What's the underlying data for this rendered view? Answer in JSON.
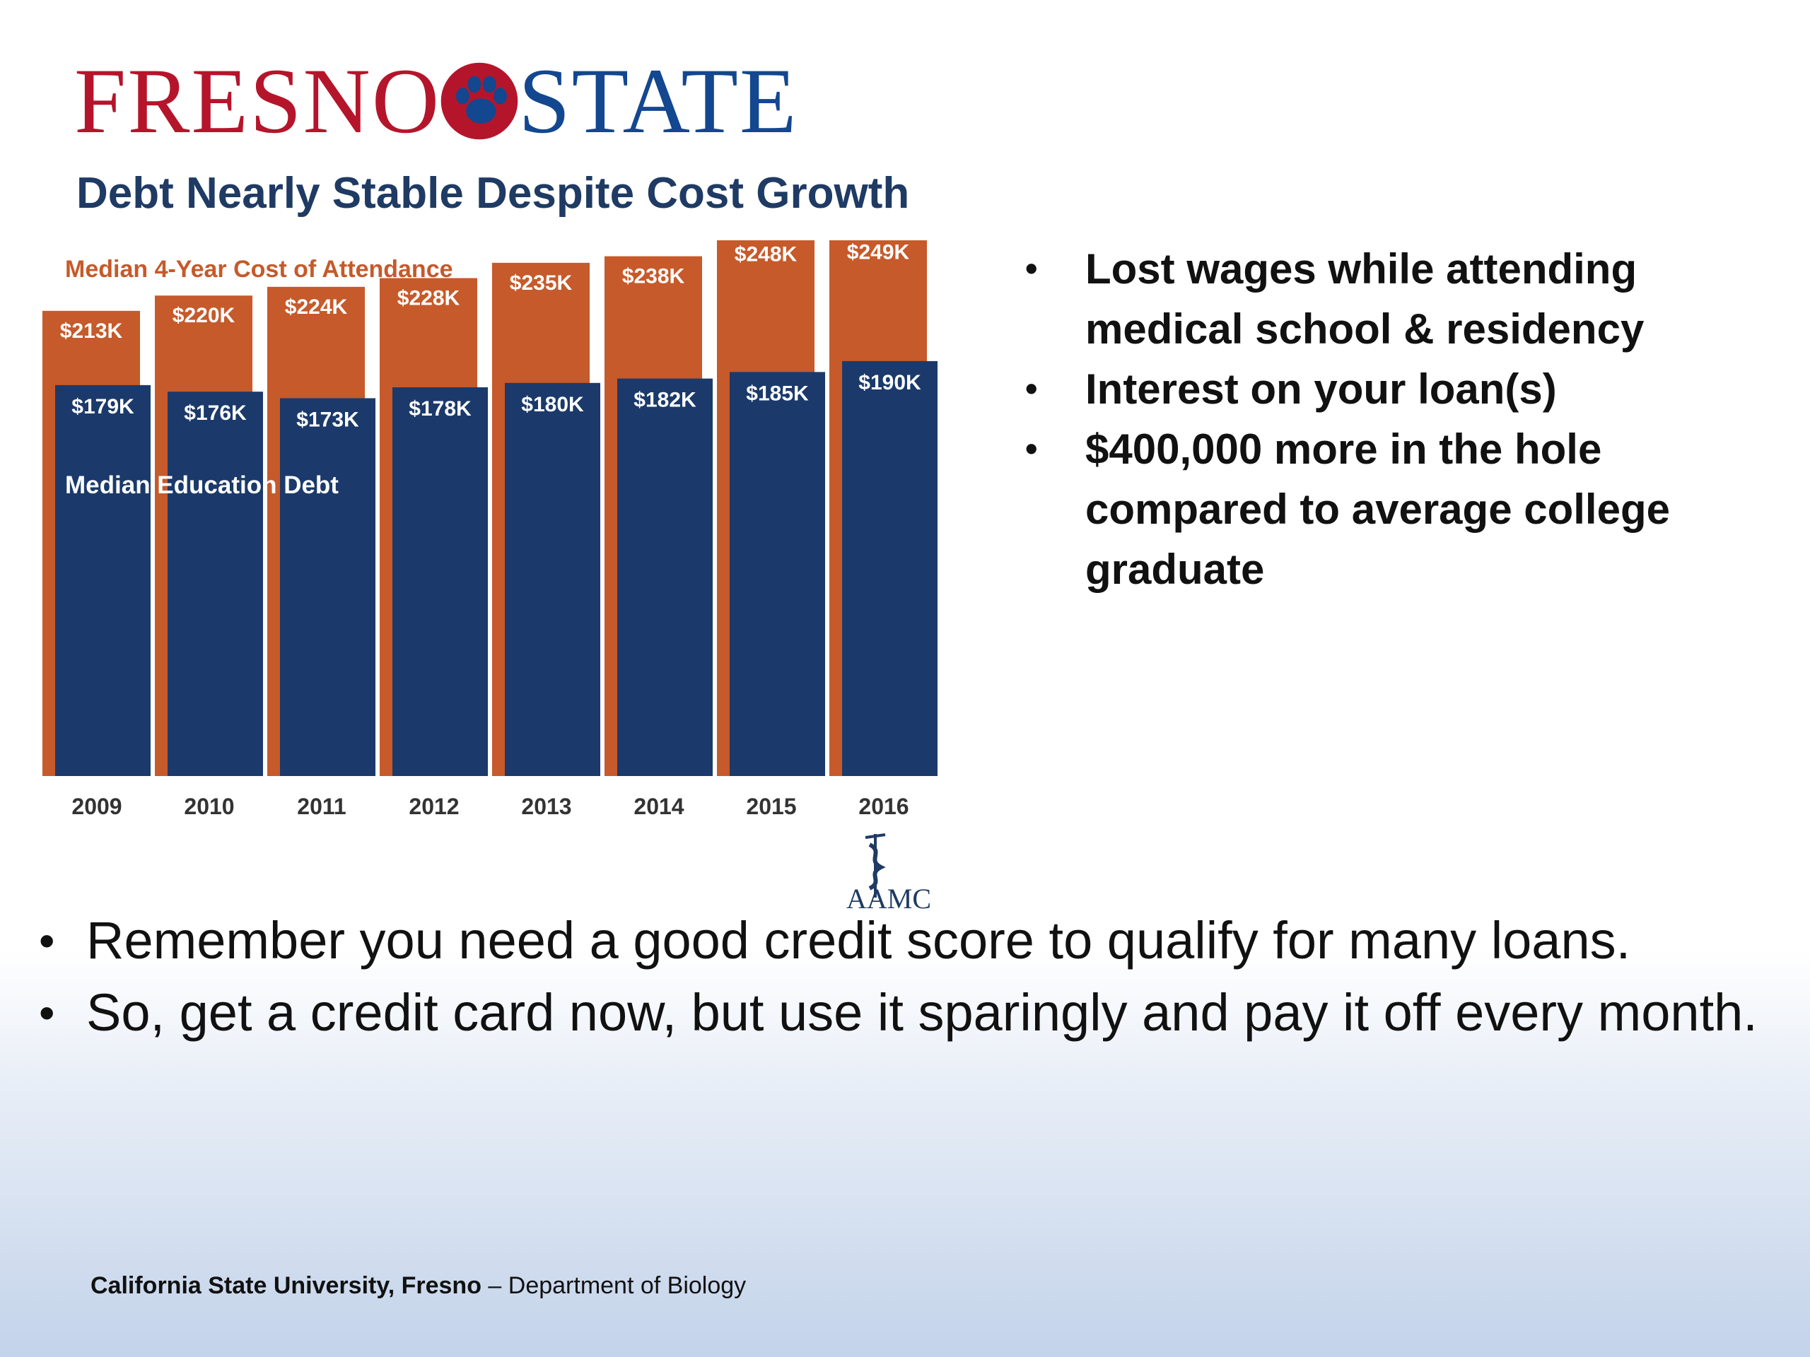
{
  "logo": {
    "left": "FRESNO",
    "right": "STATE"
  },
  "chart_data": {
    "type": "bar",
    "title": "Debt Nearly Stable Despite Cost Growth",
    "categories": [
      "2009",
      "2010",
      "2011",
      "2012",
      "2013",
      "2014",
      "2015",
      "2016"
    ],
    "series": [
      {
        "name": "Median 4-Year Cost of Attendance",
        "values": [
          213,
          220,
          224,
          228,
          235,
          238,
          248,
          249
        ],
        "labels": [
          "$213K",
          "$220K",
          "$224K",
          "$228K",
          "$235K",
          "$238K",
          "$248K",
          "$249K"
        ],
        "color": "#c65a2a"
      },
      {
        "name": "Median Education Debt",
        "values": [
          179,
          176,
          173,
          178,
          180,
          182,
          185,
          190
        ],
        "labels": [
          "$179K",
          "$176K",
          "$173K",
          "$178K",
          "$180K",
          "$182K",
          "$185K",
          "$190K"
        ],
        "color": "#1b3a6b"
      }
    ],
    "units": "thousands of dollars",
    "grid": false,
    "legend": "inline labels",
    "source": "AAMC"
  },
  "side_bullets": [
    "Lost wages while attending medical school & residency",
    "Interest on your loan(s)",
    "$400,000 more in the hole compared to average college graduate"
  ],
  "main_bullets": [
    "Remember you need a good credit score to qualify for many loans.",
    "So, get a credit card now, but use it sparingly and pay it off every month."
  ],
  "footer": {
    "bold": "California State University, Fresno",
    "rest": " – Department of Biology"
  }
}
